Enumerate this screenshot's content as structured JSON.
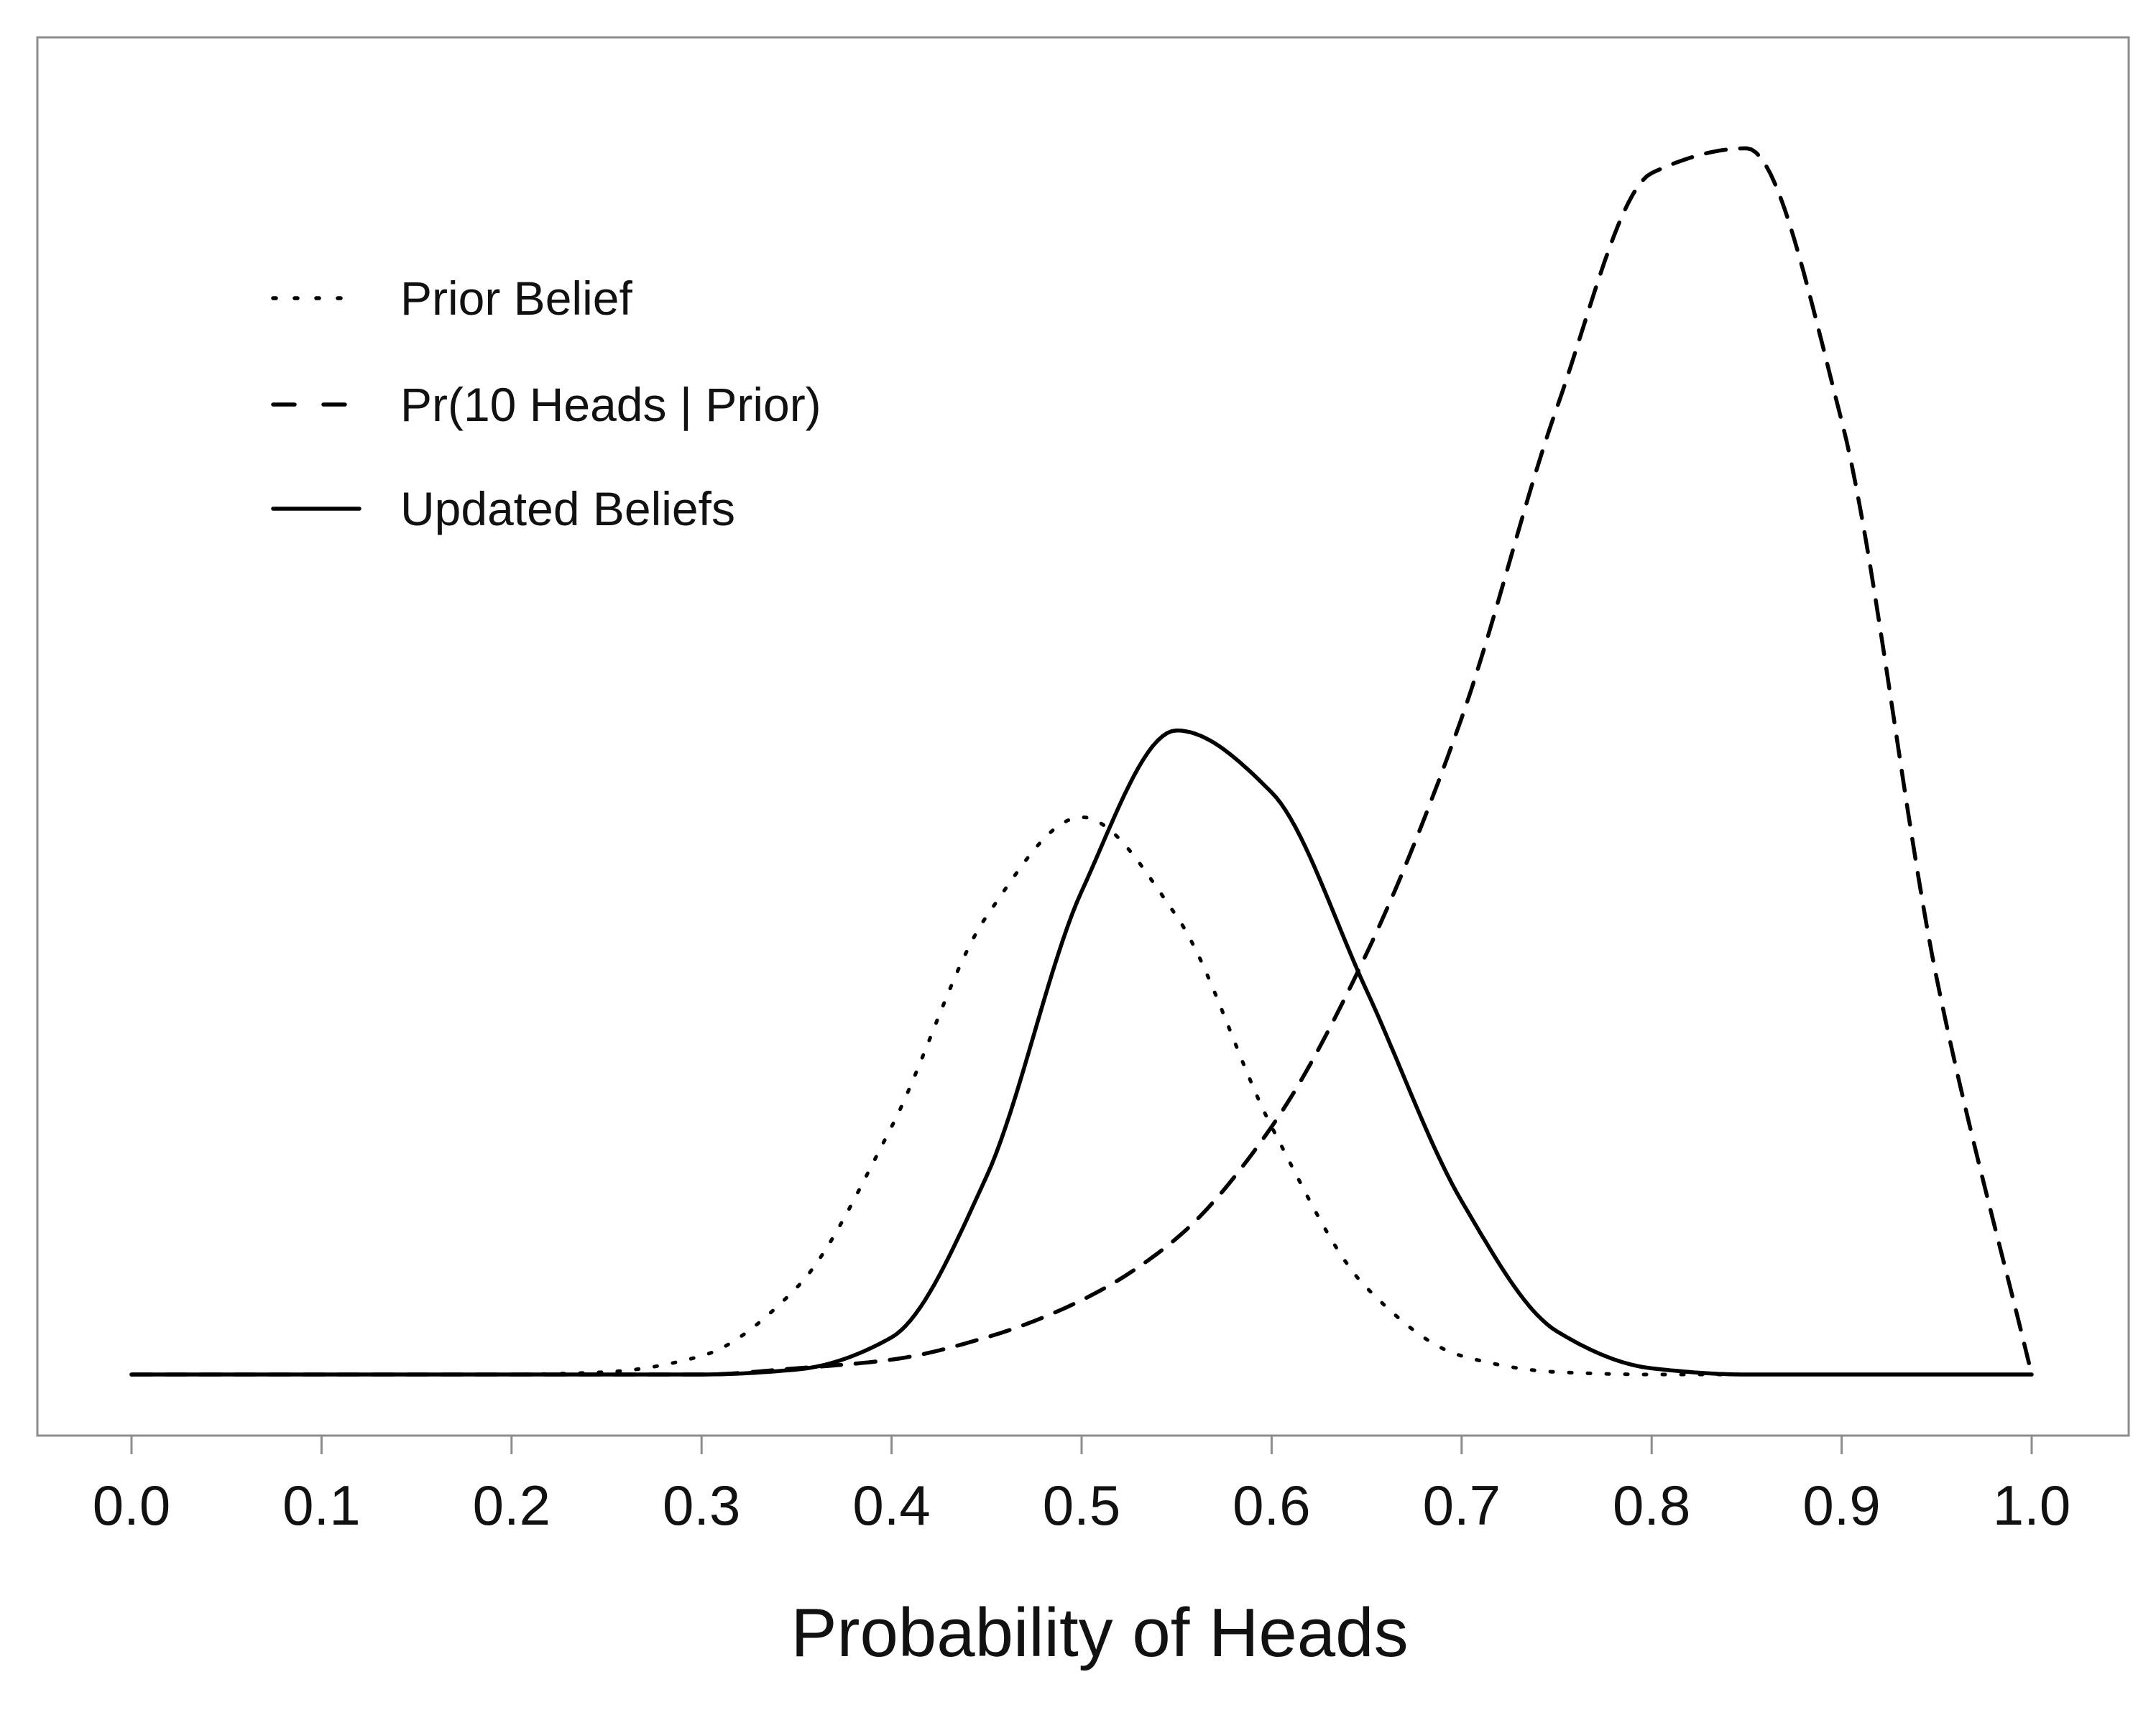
{
  "colors": {
    "frame": "#8c8c8c",
    "curve": "#000000",
    "text": "#111111",
    "background": "#ffffff"
  },
  "chart_data": {
    "type": "line",
    "title": "",
    "xlabel": "Probability of Heads",
    "ylabel": "",
    "xlim": [
      0.0,
      1.0
    ],
    "ylim": [
      0,
      1.05
    ],
    "grid": false,
    "y_tick_labels_shown": false,
    "legend_position": "top-left",
    "x_ticks": [
      "0.0",
      "0.1",
      "0.2",
      "0.3",
      "0.4",
      "0.5",
      "0.6",
      "0.7",
      "0.8",
      "0.9",
      "1.0"
    ],
    "x": [
      0.0,
      0.05,
      0.1,
      0.15,
      0.2,
      0.25,
      0.3,
      0.35,
      0.4,
      0.45,
      0.5,
      0.55,
      0.6,
      0.65,
      0.7,
      0.75,
      0.8,
      0.85,
      0.9,
      0.95,
      1.0
    ],
    "series": [
      {
        "name": "Prior Belief",
        "line_style": "dotted",
        "values": [
          0.0,
          0.0,
          0.0,
          0.0,
          0.0,
          0.002,
          0.015,
          0.07,
          0.2,
          0.37,
          0.45,
          0.37,
          0.2,
          0.07,
          0.015,
          0.002,
          0.0,
          0.0,
          0.0,
          0.0,
          0.0
        ]
      },
      {
        "name": "Pr(10 Heads | Prior)",
        "line_style": "dashed",
        "values": [
          0.0,
          0.0,
          0.0,
          0.0,
          0.0,
          0.0,
          0.0,
          0.005,
          0.012,
          0.03,
          0.06,
          0.11,
          0.2,
          0.34,
          0.53,
          0.78,
          0.97,
          0.99,
          0.77,
          0.32,
          0.0
        ]
      },
      {
        "name": "Updated Beliefs",
        "line_style": "solid",
        "values": [
          0.0,
          0.0,
          0.0,
          0.0,
          0.0,
          0.0,
          0.0,
          0.004,
          0.03,
          0.16,
          0.39,
          0.52,
          0.47,
          0.31,
          0.14,
          0.035,
          0.005,
          0.0,
          0.0,
          0.0,
          0.0
        ]
      }
    ]
  }
}
